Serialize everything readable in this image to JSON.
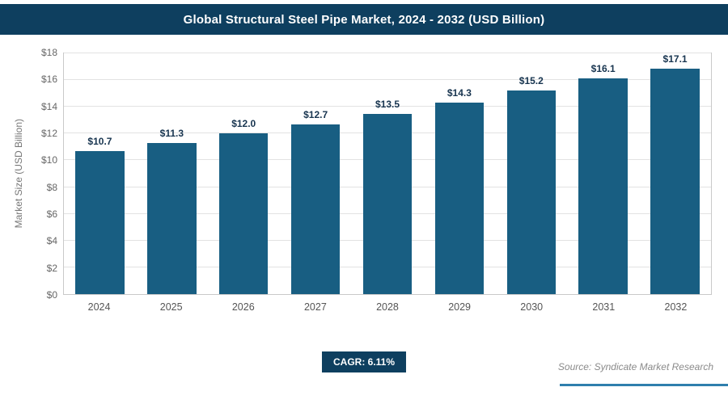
{
  "header": {
    "title": "Global Structural Steel Pipe Market, 2024 - 2032 (USD Billion)",
    "bg_color": "#0e3f5f"
  },
  "chart_data": {
    "type": "bar",
    "title": "Global Structural Steel Pipe Market, 2024 - 2032 (USD Billion)",
    "categories": [
      "2024",
      "2025",
      "2026",
      "2027",
      "2028",
      "2029",
      "2030",
      "2031",
      "2032"
    ],
    "values": [
      10.7,
      11.3,
      12.0,
      12.7,
      13.5,
      14.3,
      15.2,
      16.1,
      17.1
    ],
    "value_labels": [
      "$10.7",
      "$11.3",
      "$12.0",
      "$12.7",
      "$13.5",
      "$14.3",
      "$15.2",
      "$16.1",
      "$17.1"
    ],
    "xlabel": "",
    "ylabel": "Market Size (USD Billion)",
    "ylim": [
      0,
      18
    ],
    "ytick_step": 2,
    "yticks": [
      "$0",
      "$2",
      "$4",
      "$6",
      "$8",
      "$10",
      "$12",
      "$14",
      "$16",
      "$18"
    ],
    "bar_color": "#185e82",
    "grid": true,
    "legend": false
  },
  "footer": {
    "cagr_label": "CAGR: 6.11%",
    "source": "Source: Syndicate Market Research",
    "accent_color": "#2f7fad"
  }
}
